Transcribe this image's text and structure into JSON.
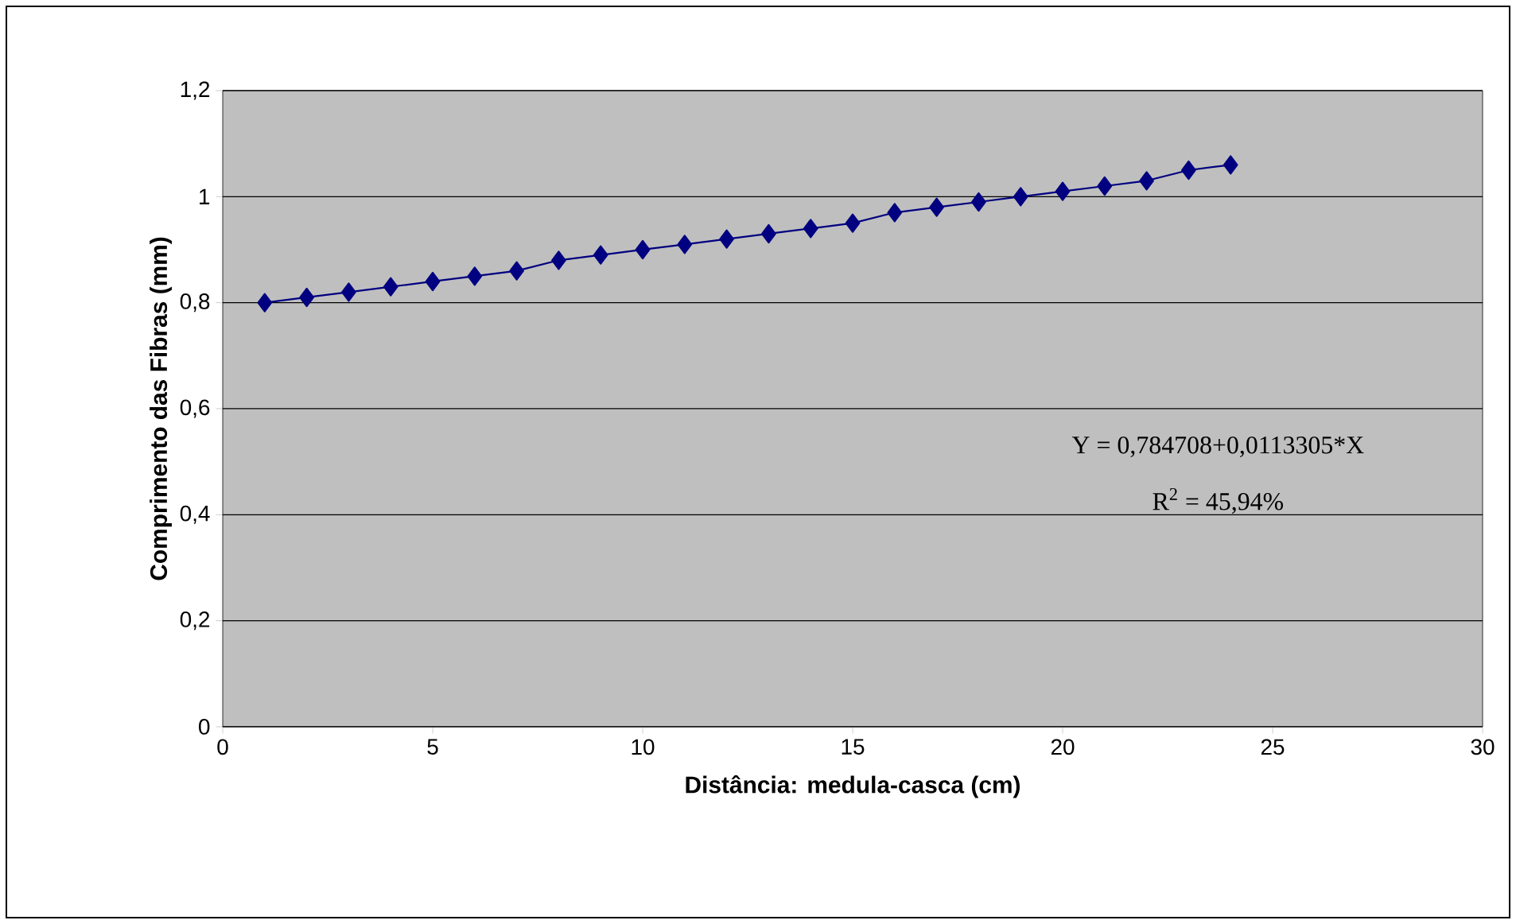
{
  "chart_data": {
    "type": "line",
    "xlabel": "Distância: medula-casca (cm)",
    "ylabel": "Comprimento das Fibras (mm)",
    "x": [
      1,
      2,
      3,
      4,
      5,
      6,
      7,
      8,
      9,
      10,
      11,
      12,
      13,
      14,
      15,
      16,
      17,
      18,
      19,
      20,
      21,
      22,
      23,
      24
    ],
    "series": [
      {
        "color": "#000080",
        "values": [
          0.8,
          0.81,
          0.82,
          0.83,
          0.84,
          0.85,
          0.86,
          0.88,
          0.89,
          0.9,
          0.91,
          0.92,
          0.93,
          0.94,
          0.95,
          0.97,
          0.98,
          0.99,
          1.0,
          1.01,
          1.02,
          1.03,
          1.05,
          1.06
        ]
      }
    ],
    "xlim": [
      0,
      30
    ],
    "xticks": [
      0,
      5,
      10,
      15,
      20,
      25,
      30
    ],
    "ylim": [
      0,
      1.2
    ],
    "yticks": [
      0,
      {
        "value": 0.2,
        "label": "0,2"
      },
      {
        "value": 0.4,
        "label": "0,4"
      },
      {
        "value": 0.6,
        "label": "0,6"
      },
      {
        "value": 0.8,
        "label": "0,8"
      },
      1,
      {
        "value": 1.2,
        "label": "1,2"
      }
    ],
    "annotations": [
      "Y = 0,784708+0,0113305*X",
      "R$^{2}$ = 45,94%"
    ],
    "grid": "y",
    "marker": "diamond",
    "line_style": "solid"
  }
}
